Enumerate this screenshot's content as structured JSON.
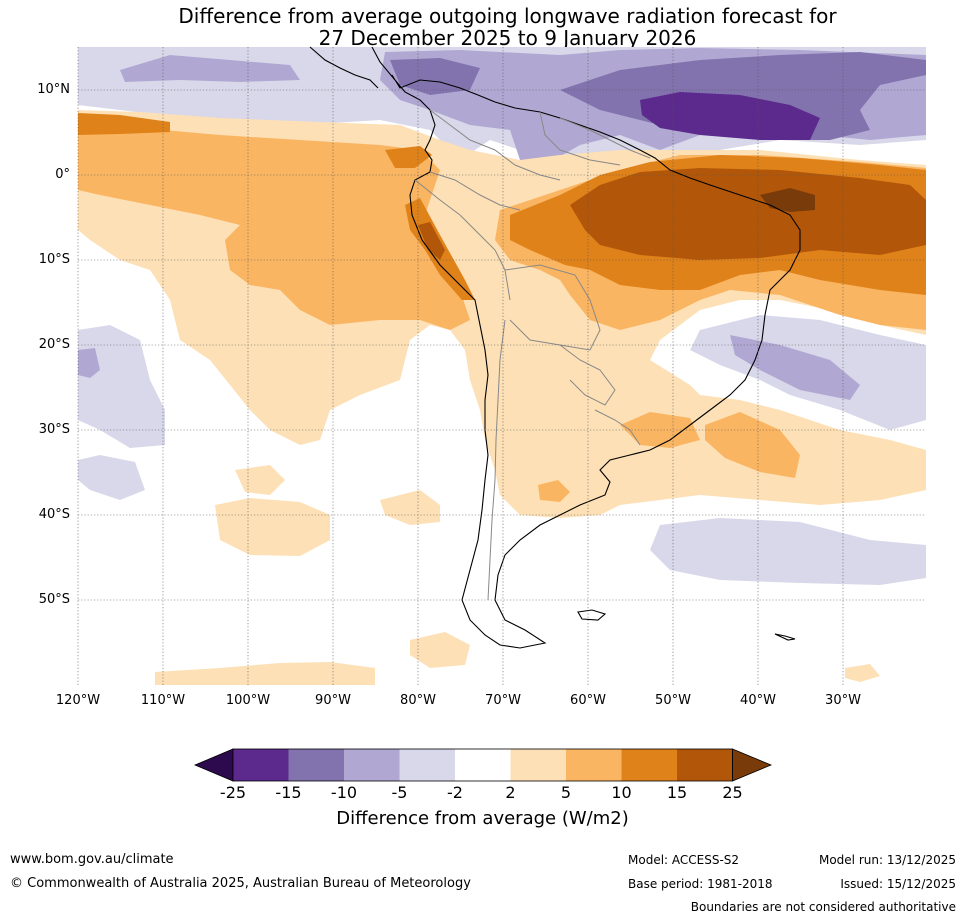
{
  "title": {
    "line1": "Difference from average outgoing longwave radiation forecast for",
    "line2": "27 December 2025 to 9 January 2026"
  },
  "map": {
    "lat_labels": [
      "10°N",
      "0°",
      "10°S",
      "20°S",
      "30°S",
      "40°S",
      "50°S"
    ],
    "lon_labels": [
      "120°W",
      "110°W",
      "100°W",
      "90°W",
      "80°W",
      "70°W",
      "60°W",
      "50°W",
      "40°W",
      "30°W"
    ]
  },
  "colorbar": {
    "ticks": [
      "-25",
      "-15",
      "-10",
      "-5",
      "-2",
      "2",
      "5",
      "10",
      "15",
      "25"
    ],
    "title": "Difference from average (W/m2)",
    "colors": {
      "below": "#2d0a4e",
      "c1": "#5b2a8c",
      "c2": "#8273ae",
      "c3": "#b0a8d2",
      "c4": "#d8d8ea",
      "c5": "#ffffff",
      "c6": "#fde0b5",
      "c7": "#fab562",
      "c8": "#e0821a",
      "c9": "#b2570a",
      "above": "#7a3b0a"
    }
  },
  "footer": {
    "website": "www.bom.gov.au/climate",
    "copyright": "© Commonwealth of Australia 2025, Australian Bureau of Meteorology",
    "model": "Model: ACCESS-S2",
    "base_period": "Base period: 1981-2018",
    "model_run": "Model run: 13/12/2025",
    "issued": "Issued: 15/12/2025",
    "disclaimer": "Boundaries are not considered authoritative"
  }
}
